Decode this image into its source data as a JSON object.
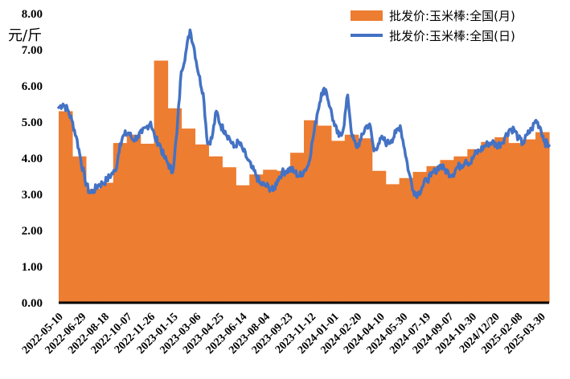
{
  "chart_data": {
    "type": "bar+line",
    "ylabel": "元/斤",
    "ylim": [
      0,
      8
    ],
    "yticks": [
      "0.00",
      "1.00",
      "2.00",
      "3.00",
      "4.00",
      "5.00",
      "6.00",
      "7.00",
      "8.00"
    ],
    "xticks": [
      "2022-05-10",
      "2022-06-29",
      "2022-08-18",
      "2022-10-07",
      "2022-11-26",
      "2023-01-15",
      "2023-03-06",
      "2023-04-25",
      "2023-06-14",
      "2023-08-04",
      "2023-09-23",
      "2023-11-12",
      "2024-01-01",
      "2024-02-20",
      "2024-04-10",
      "2024-05-30",
      "2024-07-19",
      "2024-09-07",
      "2024-10-30",
      "2024/12/20",
      "2025-02-08",
      "2025-03-30"
    ],
    "legend": {
      "position": "top-right"
    },
    "grid": false,
    "series": [
      {
        "name": "批发价:玉米棒:全国(月)",
        "type": "bar",
        "color": "#ED7D31",
        "values": [
          5.3,
          4.05,
          3.15,
          3.32,
          4.42,
          4.65,
          4.4,
          6.7,
          5.38,
          4.82,
          4.38,
          4.05,
          3.75,
          3.25,
          3.55,
          3.68,
          3.65,
          4.15,
          5.05,
          4.9,
          4.48,
          4.65,
          4.55,
          3.65,
          3.28,
          3.45,
          3.62,
          3.78,
          3.95,
          4.05,
          4.25,
          4.45,
          4.58,
          4.42,
          4.52,
          4.72
        ]
      },
      {
        "name": "批发价:玉米棒:全国(日)",
        "type": "line",
        "color": "#4472C4",
        "values": [
          5.4,
          5.5,
          5.35,
          5.05,
          4.6,
          4.0,
          3.4,
          3.05,
          3.1,
          3.25,
          3.3,
          3.4,
          3.55,
          3.65,
          4.4,
          4.65,
          4.7,
          4.5,
          4.6,
          4.7,
          4.85,
          5.0,
          4.55,
          4.4,
          4.05,
          3.85,
          3.6,
          4.7,
          6.4,
          6.9,
          7.55,
          7.0,
          6.3,
          5.8,
          4.4,
          4.55,
          5.3,
          4.9,
          4.75,
          4.55,
          4.3,
          4.45,
          4.25,
          4.0,
          3.75,
          3.55,
          3.3,
          3.25,
          3.2,
          3.1,
          3.4,
          3.6,
          3.65,
          3.7,
          3.6,
          3.5,
          3.65,
          3.8,
          4.5,
          5.2,
          5.8,
          5.9,
          5.4,
          4.9,
          4.6,
          4.8,
          5.75,
          4.6,
          4.3,
          4.5,
          4.85,
          4.95,
          4.2,
          4.4,
          4.55,
          4.4,
          4.5,
          4.7,
          4.9,
          4.25,
          3.6,
          3.1,
          3.0,
          3.2,
          3.4,
          3.5,
          3.65,
          3.8,
          3.7,
          3.6,
          3.55,
          3.75,
          3.8,
          3.95,
          3.85,
          4.1,
          4.2,
          4.3,
          4.4,
          4.45,
          4.35,
          4.4,
          4.6,
          4.8,
          4.8,
          4.55,
          4.4,
          4.65,
          4.8,
          5.05,
          4.85,
          4.45,
          4.35
        ]
      }
    ]
  }
}
